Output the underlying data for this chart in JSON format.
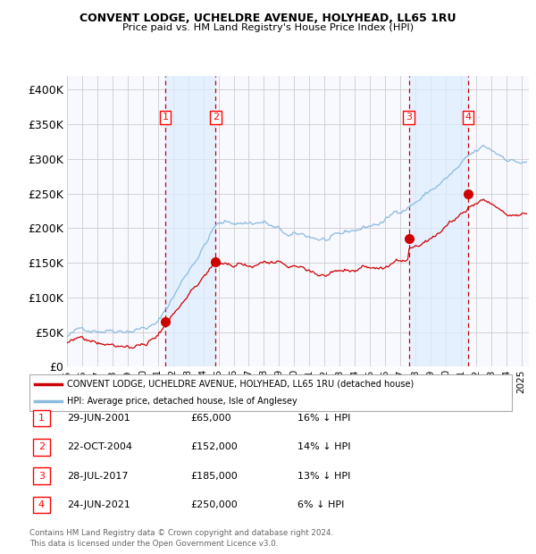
{
  "title1": "CONVENT LODGE, UCHELDRE AVENUE, HOLYHEAD, LL65 1RU",
  "title2": "Price paid vs. HM Land Registry's House Price Index (HPI)",
  "xlim_start": 1995.0,
  "xlim_end": 2025.5,
  "ylim_min": 0,
  "ylim_max": 420000,
  "yticks": [
    0,
    50000,
    100000,
    150000,
    200000,
    250000,
    300000,
    350000,
    400000
  ],
  "ytick_labels": [
    "£0",
    "£50K",
    "£100K",
    "£150K",
    "£200K",
    "£250K",
    "£300K",
    "£350K",
    "£400K"
  ],
  "background_color": "#ffffff",
  "plot_bg_color": "#f8f8ff",
  "grid_color": "#cccccc",
  "hpi_line_color": "#88bbdd",
  "property_line_color": "#cc0000",
  "sale_point_color": "#cc0000",
  "dashed_line_color": "#cc0000",
  "shade_color": "#ddeeff",
  "sale_points": [
    {
      "date": 2001.49,
      "price": 65000,
      "label": "1"
    },
    {
      "date": 2004.81,
      "price": 152000,
      "label": "2"
    },
    {
      "date": 2017.57,
      "price": 185000,
      "label": "3"
    },
    {
      "date": 2021.48,
      "price": 250000,
      "label": "4"
    }
  ],
  "legend_property": "CONVENT LODGE, UCHELDRE AVENUE, HOLYHEAD, LL65 1RU (detached house)",
  "legend_hpi": "HPI: Average price, detached house, Isle of Anglesey",
  "table_rows": [
    {
      "num": "1",
      "date": "29-JUN-2001",
      "price": "£65,000",
      "hpi": "16% ↓ HPI"
    },
    {
      "num": "2",
      "date": "22-OCT-2004",
      "price": "£152,000",
      "hpi": "14% ↓ HPI"
    },
    {
      "num": "3",
      "date": "28-JUL-2017",
      "price": "£185,000",
      "hpi": "13% ↓ HPI"
    },
    {
      "num": "4",
      "date": "24-JUN-2021",
      "price": "£250,000",
      "hpi": "6% ↓ HPI"
    }
  ],
  "footer1": "Contains HM Land Registry data © Crown copyright and database right 2024.",
  "footer2": "This data is licensed under the Open Government Licence v3.0."
}
